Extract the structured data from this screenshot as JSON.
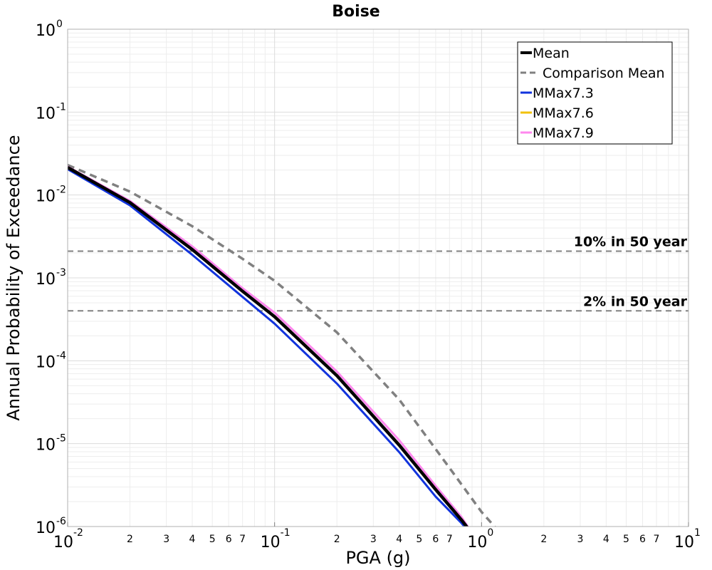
{
  "chart_data": {
    "type": "line",
    "title": "Boise",
    "xlabel": "PGA (g)",
    "ylabel": "Annual Probability of Exceedance",
    "xscale": "log",
    "yscale": "log",
    "xlim": [
      0.01,
      10
    ],
    "ylim": [
      1e-06,
      1
    ],
    "grid": true,
    "legend_position": "top-right",
    "x_major_ticks": [
      {
        "value": 0.01,
        "base": "10",
        "exp": "-2"
      },
      {
        "value": 0.1,
        "base": "10",
        "exp": "-1"
      },
      {
        "value": 1,
        "base": "10",
        "exp": "0"
      },
      {
        "value": 10,
        "base": "10",
        "exp": "1"
      }
    ],
    "x_minor_tick_labels": [
      "2",
      "3",
      "4",
      "5",
      "6",
      "7"
    ],
    "y_major_ticks": [
      {
        "value": 1,
        "base": "10",
        "exp": "0"
      },
      {
        "value": 0.1,
        "base": "10",
        "exp": "-1"
      },
      {
        "value": 0.01,
        "base": "10",
        "exp": "-2"
      },
      {
        "value": 0.001,
        "base": "10",
        "exp": "-3"
      },
      {
        "value": 0.0001,
        "base": "10",
        "exp": "-4"
      },
      {
        "value": 1e-05,
        "base": "10",
        "exp": "-5"
      },
      {
        "value": 1e-06,
        "base": "10",
        "exp": "-6"
      }
    ],
    "reference_lines": [
      {
        "label": "10% in 50 year",
        "y": 0.0021,
        "color": "#808080"
      },
      {
        "label": "2% in 50 year",
        "y": 0.0004,
        "color": "#808080"
      }
    ],
    "series": [
      {
        "name": "Comparison Mean",
        "color": "#808080",
        "style": "dashed",
        "x": [
          0.01,
          0.02,
          0.04,
          0.07,
          0.1,
          0.2,
          0.4,
          0.7,
          1.0,
          1.2
        ],
        "y": [
          0.023,
          0.011,
          0.0042,
          0.0017,
          0.00092,
          0.00022,
          3.4e-05,
          5.1e-06,
          1.5e-06,
          9e-07
        ]
      },
      {
        "name": "MMax7.3",
        "color": "#1133dd",
        "style": "solid",
        "x": [
          0.01,
          0.02,
          0.04,
          0.07,
          0.1,
          0.2,
          0.4,
          0.6,
          0.8,
          0.85
        ],
        "y": [
          0.0205,
          0.0075,
          0.0019,
          0.00059,
          0.00028,
          5.3e-05,
          7.9e-06,
          2.3e-06,
          1.1e-06,
          9.2e-07
        ]
      },
      {
        "name": "MMax7.6",
        "color": "#f2c20c",
        "style": "solid",
        "x": [
          0.01,
          0.02,
          0.04,
          0.07,
          0.1,
          0.2,
          0.4,
          0.6,
          0.8,
          0.85
        ],
        "y": [
          0.0215,
          0.008,
          0.0022,
          0.00068,
          0.00034,
          6.7e-05,
          9.8e-06,
          2.8e-06,
          1.2e-06,
          9.8e-07
        ]
      },
      {
        "name": "MMax7.9",
        "color": "#ff88ee",
        "style": "solid",
        "x": [
          0.01,
          0.02,
          0.04,
          0.07,
          0.1,
          0.2,
          0.4,
          0.6,
          0.8,
          0.86
        ],
        "y": [
          0.022,
          0.0085,
          0.0024,
          0.00075,
          0.00038,
          7.4e-05,
          1.1e-05,
          3.1e-06,
          1.3e-06,
          9.9e-07
        ]
      },
      {
        "name": "Mean",
        "color": "#000000",
        "style": "solid",
        "x": [
          0.01,
          0.02,
          0.04,
          0.07,
          0.1,
          0.2,
          0.4,
          0.6,
          0.8,
          0.86
        ],
        "y": [
          0.0215,
          0.0081,
          0.0022,
          0.00069,
          0.00034,
          6.6e-05,
          9.6e-06,
          2.8e-06,
          1.2e-06,
          9.5e-07
        ]
      }
    ],
    "legend_order": [
      "Mean",
      "Comparison Mean",
      "MMax7.3",
      "MMax7.6",
      "MMax7.9"
    ]
  }
}
